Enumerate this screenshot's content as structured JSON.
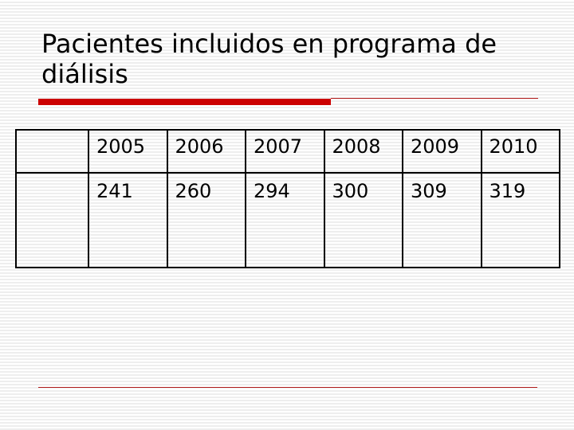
{
  "slide": {
    "title": "Pacientes incluidos en programa de diálisis"
  },
  "table": {
    "corner_cell": "",
    "years": [
      "2005",
      "2006",
      "2007",
      "2008",
      "2009",
      "2010"
    ],
    "row_label": "",
    "patients": [
      "241",
      "260",
      "294",
      "300",
      "309",
      "319"
    ]
  },
  "colors": {
    "accent_red": "#cc0000",
    "rule_red": "#b01a1a"
  }
}
